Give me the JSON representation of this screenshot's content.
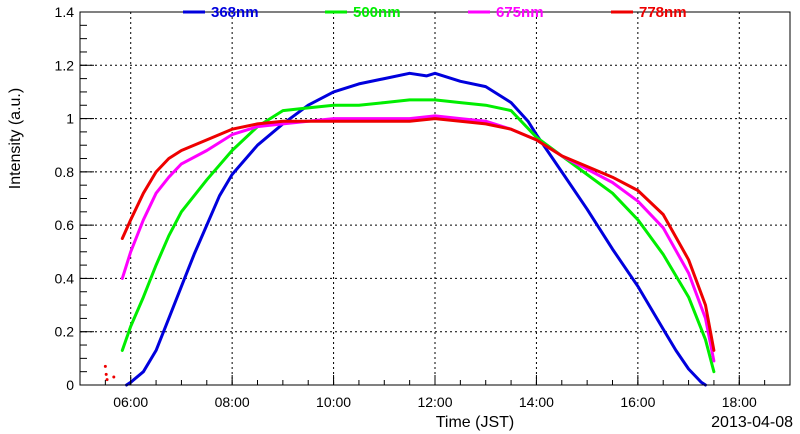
{
  "chart_data": {
    "type": "line",
    "xlabel": "Time (JST)",
    "ylabel": "Intensity (a.u.)",
    "date_label": "2013-04-08",
    "xlim": [
      "05:00",
      "19:00"
    ],
    "ylim": [
      0,
      1.4
    ],
    "grid": true,
    "legend_placement": "top",
    "x_ticks": [
      "06:00",
      "08:00",
      "10:00",
      "12:00",
      "14:00",
      "16:00",
      "18:00"
    ],
    "y_ticks": [
      "0",
      "0.2",
      "0.4",
      "0.6",
      "0.8",
      "1",
      "1.2",
      "1.4"
    ],
    "series": [
      {
        "name": "368nm",
        "color": "#0000dd",
        "points": [
          [
            "05:55",
            0.0
          ],
          [
            "06:00",
            0.01
          ],
          [
            "06:15",
            0.05
          ],
          [
            "06:30",
            0.13
          ],
          [
            "06:45",
            0.25
          ],
          [
            "07:00",
            0.37
          ],
          [
            "07:15",
            0.49
          ],
          [
            "07:30",
            0.6
          ],
          [
            "07:45",
            0.71
          ],
          [
            "08:00",
            0.79
          ],
          [
            "08:30",
            0.9
          ],
          [
            "09:00",
            0.98
          ],
          [
            "09:30",
            1.05
          ],
          [
            "10:00",
            1.1
          ],
          [
            "10:30",
            1.13
          ],
          [
            "11:00",
            1.15
          ],
          [
            "11:30",
            1.17
          ],
          [
            "11:50",
            1.16
          ],
          [
            "12:00",
            1.17
          ],
          [
            "12:30",
            1.14
          ],
          [
            "13:00",
            1.12
          ],
          [
            "13:30",
            1.06
          ],
          [
            "13:50",
            0.99
          ],
          [
            "14:00",
            0.94
          ],
          [
            "14:30",
            0.8
          ],
          [
            "15:00",
            0.66
          ],
          [
            "15:30",
            0.51
          ],
          [
            "16:00",
            0.37
          ],
          [
            "16:30",
            0.21
          ],
          [
            "16:45",
            0.13
          ],
          [
            "17:00",
            0.06
          ],
          [
            "17:15",
            0.01
          ],
          [
            "17:20",
            0.0
          ]
        ]
      },
      {
        "name": "500nm",
        "color": "#00ee00",
        "points": [
          [
            "05:50",
            0.13
          ],
          [
            "06:00",
            0.22
          ],
          [
            "06:15",
            0.33
          ],
          [
            "06:30",
            0.45
          ],
          [
            "06:45",
            0.56
          ],
          [
            "07:00",
            0.65
          ],
          [
            "07:30",
            0.77
          ],
          [
            "08:00",
            0.88
          ],
          [
            "08:30",
            0.97
          ],
          [
            "09:00",
            1.03
          ],
          [
            "09:30",
            1.04
          ],
          [
            "10:00",
            1.05
          ],
          [
            "10:30",
            1.05
          ],
          [
            "11:00",
            1.06
          ],
          [
            "11:30",
            1.07
          ],
          [
            "12:00",
            1.07
          ],
          [
            "12:30",
            1.06
          ],
          [
            "13:00",
            1.05
          ],
          [
            "13:30",
            1.03
          ],
          [
            "14:00",
            0.93
          ],
          [
            "14:30",
            0.86
          ],
          [
            "15:00",
            0.79
          ],
          [
            "15:30",
            0.72
          ],
          [
            "16:00",
            0.62
          ],
          [
            "16:30",
            0.49
          ],
          [
            "17:00",
            0.33
          ],
          [
            "17:20",
            0.17
          ],
          [
            "17:30",
            0.05
          ]
        ]
      },
      {
        "name": "675nm",
        "color": "#ff00ff",
        "points": [
          [
            "05:50",
            0.4
          ],
          [
            "06:00",
            0.5
          ],
          [
            "06:15",
            0.62
          ],
          [
            "06:30",
            0.72
          ],
          [
            "06:45",
            0.78
          ],
          [
            "07:00",
            0.83
          ],
          [
            "07:30",
            0.88
          ],
          [
            "08:00",
            0.94
          ],
          [
            "08:30",
            0.97
          ],
          [
            "09:00",
            0.98
          ],
          [
            "09:30",
            0.99
          ],
          [
            "10:00",
            1.0
          ],
          [
            "10:30",
            1.0
          ],
          [
            "11:00",
            1.0
          ],
          [
            "11:30",
            1.0
          ],
          [
            "12:00",
            1.01
          ],
          [
            "12:30",
            1.0
          ],
          [
            "13:00",
            0.99
          ],
          [
            "13:30",
            0.96
          ],
          [
            "14:00",
            0.92
          ],
          [
            "14:30",
            0.86
          ],
          [
            "15:00",
            0.81
          ],
          [
            "15:30",
            0.76
          ],
          [
            "16:00",
            0.69
          ],
          [
            "16:30",
            0.59
          ],
          [
            "17:00",
            0.42
          ],
          [
            "17:20",
            0.25
          ],
          [
            "17:30",
            0.09
          ]
        ]
      },
      {
        "name": "778nm",
        "color": "#ee0000",
        "points": [
          [
            "05:50",
            0.55
          ],
          [
            "06:00",
            0.62
          ],
          [
            "06:15",
            0.72
          ],
          [
            "06:30",
            0.8
          ],
          [
            "06:45",
            0.85
          ],
          [
            "07:00",
            0.88
          ],
          [
            "07:30",
            0.92
          ],
          [
            "08:00",
            0.96
          ],
          [
            "08:30",
            0.98
          ],
          [
            "09:00",
            0.99
          ],
          [
            "09:30",
            0.99
          ],
          [
            "10:00",
            0.99
          ],
          [
            "10:30",
            0.99
          ],
          [
            "11:00",
            0.99
          ],
          [
            "11:30",
            0.99
          ],
          [
            "12:00",
            1.0
          ],
          [
            "12:30",
            0.99
          ],
          [
            "13:00",
            0.98
          ],
          [
            "13:30",
            0.96
          ],
          [
            "14:00",
            0.92
          ],
          [
            "14:30",
            0.86
          ],
          [
            "15:00",
            0.82
          ],
          [
            "15:30",
            0.78
          ],
          [
            "16:00",
            0.73
          ],
          [
            "16:30",
            0.64
          ],
          [
            "17:00",
            0.47
          ],
          [
            "17:20",
            0.3
          ],
          [
            "17:30",
            0.13
          ]
        ]
      }
    ],
    "outlier_points": [
      {
        "series": "778nm",
        "x": "05:30",
        "y": 0.07
      },
      {
        "series": "778nm",
        "x": "05:31",
        "y": 0.04
      },
      {
        "series": "778nm",
        "x": "05:32",
        "y": 0.02
      },
      {
        "series": "778nm",
        "x": "05:40",
        "y": 0.03
      }
    ]
  }
}
